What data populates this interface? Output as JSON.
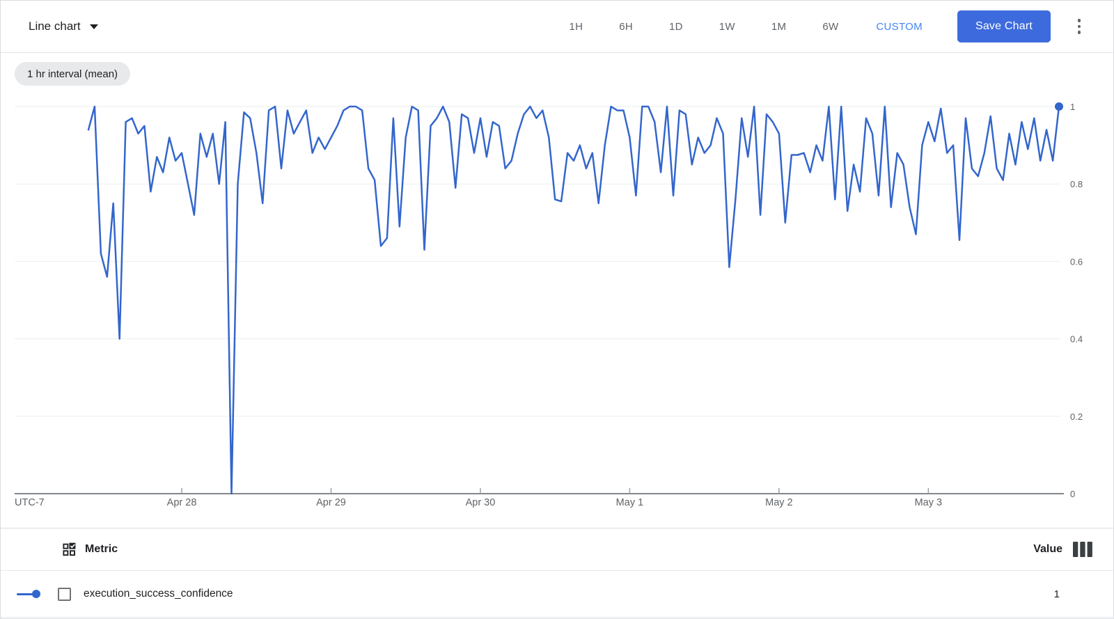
{
  "toolbar": {
    "chart_type_label": "Line chart",
    "time_ranges": [
      "1H",
      "6H",
      "1D",
      "1W",
      "1M",
      "6W"
    ],
    "custom_label": "CUSTOM",
    "save_button_label": "Save Chart"
  },
  "chart": {
    "interval_chip_label": "1 hr interval (mean)"
  },
  "chart_data": {
    "type": "line",
    "title": "1 hr interval (mean)",
    "xlabel": "",
    "ylabel": "",
    "ylim": [
      0,
      1
    ],
    "grid": "horizontal",
    "legend_position": "table-below",
    "x_unit": "one point per hour, Apr 27 – May 3, timezone UTC-7",
    "utc_offset_label": "UTC-7",
    "y_ticks": [
      {
        "v": 0,
        "label": "0"
      },
      {
        "v": 0.2,
        "label": "0.2"
      },
      {
        "v": 0.4,
        "label": "0.4"
      },
      {
        "v": 0.6,
        "label": "0.6"
      },
      {
        "v": 0.8,
        "label": "0.8"
      },
      {
        "v": 1,
        "label": "1"
      }
    ],
    "x_ticks": [
      {
        "index": 15,
        "label": "Apr 28"
      },
      {
        "index": 39,
        "label": "Apr 29"
      },
      {
        "index": 63,
        "label": "Apr 30"
      },
      {
        "index": 87,
        "label": "May 1"
      },
      {
        "index": 111,
        "label": "May 2"
      },
      {
        "index": 135,
        "label": "May 3"
      }
    ],
    "series": [
      {
        "name": "execution_success_confidence",
        "color": "#3366CC",
        "end_marker": true,
        "latest_value": 1,
        "values": [
          0.94,
          1.0,
          0.62,
          0.56,
          0.75,
          0.4,
          0.96,
          0.97,
          0.93,
          0.95,
          0.78,
          0.87,
          0.83,
          0.92,
          0.86,
          0.88,
          0.8,
          0.72,
          0.93,
          0.87,
          0.93,
          0.8,
          0.96,
          0.0,
          0.8,
          0.985,
          0.97,
          0.88,
          0.75,
          0.99,
          1.0,
          0.84,
          0.99,
          0.93,
          0.96,
          0.99,
          0.88,
          0.92,
          0.89,
          0.92,
          0.95,
          0.99,
          1.0,
          1.0,
          0.99,
          0.84,
          0.81,
          0.64,
          0.66,
          0.97,
          0.69,
          0.92,
          1.0,
          0.99,
          0.63,
          0.95,
          0.97,
          1.0,
          0.96,
          0.79,
          0.98,
          0.97,
          0.88,
          0.97,
          0.87,
          0.96,
          0.95,
          0.84,
          0.86,
          0.93,
          0.98,
          1.0,
          0.97,
          0.99,
          0.92,
          0.76,
          0.755,
          0.88,
          0.86,
          0.9,
          0.84,
          0.88,
          0.75,
          0.9,
          1.0,
          0.99,
          0.99,
          0.92,
          0.77,
          1.0,
          1.0,
          0.96,
          0.83,
          1.0,
          0.77,
          0.99,
          0.98,
          0.85,
          0.92,
          0.88,
          0.9,
          0.97,
          0.93,
          0.585,
          0.76,
          0.97,
          0.87,
          1.0,
          0.72,
          0.98,
          0.96,
          0.93,
          0.7,
          0.875,
          0.875,
          0.88,
          0.83,
          0.9,
          0.86,
          1.0,
          0.76,
          1.0,
          0.73,
          0.85,
          0.78,
          0.97,
          0.93,
          0.77,
          1.0,
          0.74,
          0.88,
          0.85,
          0.74,
          0.67,
          0.9,
          0.96,
          0.91,
          0.995,
          0.88,
          0.9,
          0.655,
          0.97,
          0.84,
          0.82,
          0.88,
          0.975,
          0.84,
          0.81,
          0.93,
          0.85,
          0.96,
          0.89,
          0.97,
          0.86,
          0.94,
          0.86,
          1.0
        ]
      }
    ]
  },
  "legend_table": {
    "metric_header": "Metric",
    "value_header": "Value",
    "rows": [
      {
        "metric": "execution_success_confidence",
        "value": "1",
        "color": "#3366CC",
        "checked": false
      }
    ]
  },
  "colors": {
    "accent_link": "#4285F4",
    "save_button_bg": "#3D6BDD",
    "save_button_text": "#FFFFFF",
    "line": "#3366CC",
    "chip_bg": "#E8E9EB",
    "axis_line": "#80868B",
    "tick": "#9AA0A6",
    "gridline": "#EBEDEF",
    "text_primary": "#202124",
    "text_secondary": "#5F6368",
    "axis_label": "#616161"
  }
}
